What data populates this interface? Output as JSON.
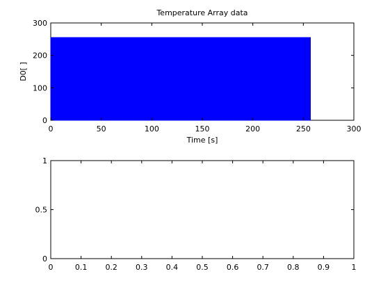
{
  "chart_data": [
    {
      "type": "area",
      "title": "Temperature Array data",
      "xlabel": "Time [s]",
      "ylabel": "D0[ ]",
      "xlim": [
        0,
        300
      ],
      "ylim": [
        0,
        300
      ],
      "xticks": [
        "0",
        "50",
        "100",
        "150",
        "200",
        "250",
        "300"
      ],
      "yticks": [
        "0",
        "100",
        "200",
        "300"
      ],
      "grid": false,
      "series": [
        {
          "color": "#0000ff",
          "x": [
            0,
            257
          ],
          "y": [
            255,
            255
          ],
          "fill_to": 0
        }
      ]
    },
    {
      "type": "line",
      "title": "",
      "xlabel": "",
      "ylabel": "",
      "xlim": [
        0,
        1
      ],
      "ylim": [
        0,
        1
      ],
      "xticks": [
        "0",
        "0.1",
        "0.2",
        "0.3",
        "0.4",
        "0.5",
        "0.6",
        "0.7",
        "0.8",
        "0.9",
        "1"
      ],
      "yticks": [
        "0",
        "0.5",
        "1"
      ],
      "grid": false,
      "series": []
    }
  ]
}
